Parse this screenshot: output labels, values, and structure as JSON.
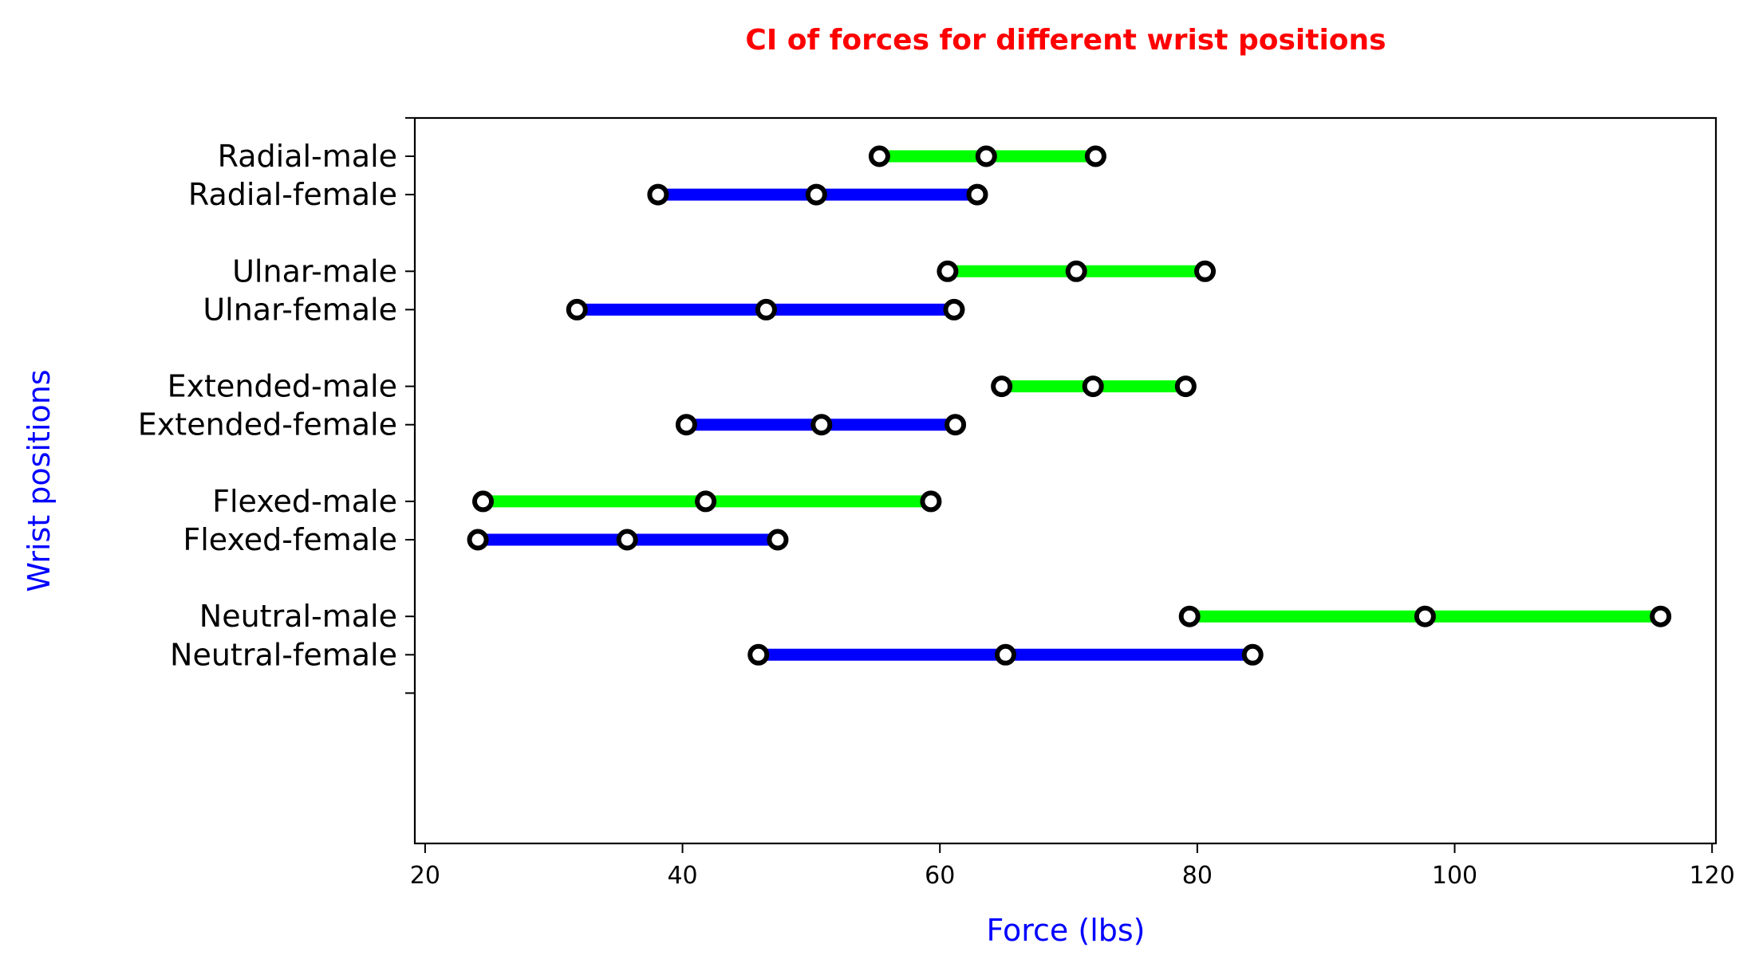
{
  "chart_data": {
    "type": "interval",
    "title": "CI of forces for different wrist positions",
    "xlabel": "Force (lbs)",
    "ylabel": "Wrist positions",
    "xlim": [
      19.2,
      120.3
    ],
    "xticks": [
      20,
      40,
      60,
      80,
      100,
      120
    ],
    "grid": false,
    "colors": {
      "title": "#ff0000",
      "axis_labels": "#0000ff",
      "male": "#00ff00",
      "female": "#0000ff",
      "marker_edge": "#000000",
      "marker_face": "#ffffff"
    },
    "categories": [
      "Radial-male",
      "Radial-female",
      "Ulnar-male",
      "Ulnar-female",
      "Extended-male",
      "Extended-female",
      "Flexed-male",
      "Flexed-female",
      "Neutral-male",
      "Neutral-female"
    ],
    "intervals": [
      {
        "label": "Radial-male",
        "sex": "male",
        "low": 55.3,
        "mean": 63.6,
        "high": 72.1
      },
      {
        "label": "Radial-female",
        "sex": "female",
        "low": 38.1,
        "mean": 50.4,
        "high": 62.9
      },
      {
        "label": "Ulnar-male",
        "sex": "male",
        "low": 60.6,
        "mean": 70.6,
        "high": 80.6
      },
      {
        "label": "Ulnar-female",
        "sex": "female",
        "low": 31.8,
        "mean": 46.5,
        "high": 61.1
      },
      {
        "label": "Extended-male",
        "sex": "male",
        "low": 64.8,
        "mean": 71.9,
        "high": 79.1
      },
      {
        "label": "Extended-female",
        "sex": "female",
        "low": 40.3,
        "mean": 50.8,
        "high": 61.2
      },
      {
        "label": "Flexed-male",
        "sex": "male",
        "low": 24.5,
        "mean": 41.8,
        "high": 59.3
      },
      {
        "label": "Flexed-female",
        "sex": "female",
        "low": 24.1,
        "mean": 35.7,
        "high": 47.4
      },
      {
        "label": "Neutral-male",
        "sex": "male",
        "low": 79.4,
        "mean": 97.7,
        "high": 116.0
      },
      {
        "label": "Neutral-female",
        "sex": "female",
        "low": 45.9,
        "mean": 65.1,
        "high": 84.3
      }
    ]
  }
}
